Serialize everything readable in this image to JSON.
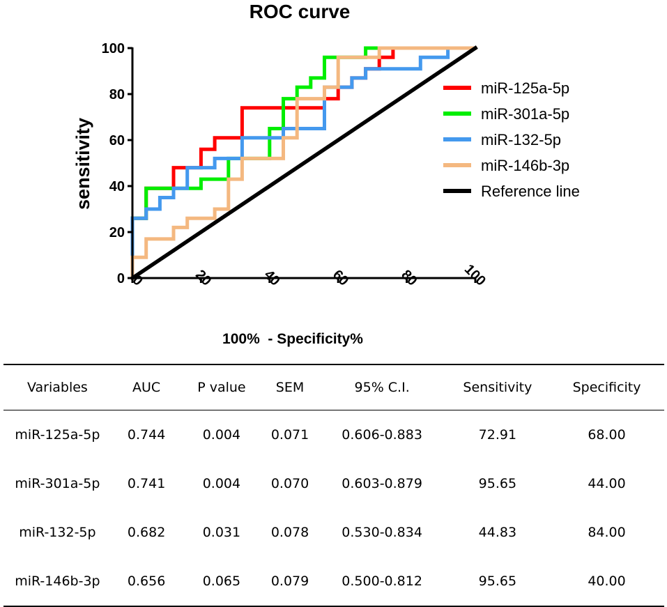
{
  "chart_data": {
    "type": "line",
    "title": "ROC curve",
    "xlabel": "100%  - Specificity%",
    "ylabel": "sensitivity",
    "xlim": [
      0,
      100
    ],
    "ylim": [
      0,
      100
    ],
    "xticks": [
      "0",
      "20",
      "40",
      "60",
      "80",
      "100"
    ],
    "yticks": [
      "0",
      "20",
      "40",
      "60",
      "80",
      "100"
    ],
    "legend_position": "right",
    "series": [
      {
        "name": "miR-125a-5p",
        "color": "#ff0000",
        "points": [
          [
            0,
            0
          ],
          [
            0,
            26
          ],
          [
            4,
            26
          ],
          [
            4,
            39
          ],
          [
            12,
            39
          ],
          [
            12,
            48
          ],
          [
            16,
            48
          ],
          [
            16,
            48
          ],
          [
            20,
            48
          ],
          [
            20,
            56
          ],
          [
            24,
            56
          ],
          [
            24,
            61
          ],
          [
            32,
            61
          ],
          [
            32,
            74
          ],
          [
            56,
            74
          ],
          [
            56,
            78
          ],
          [
            60,
            78
          ],
          [
            60,
            83
          ],
          [
            64,
            83
          ],
          [
            64,
            87
          ],
          [
            68,
            87
          ],
          [
            68,
            91
          ],
          [
            72,
            91
          ],
          [
            72,
            96
          ],
          [
            76,
            96
          ],
          [
            76,
            100
          ],
          [
            100,
            100
          ]
        ]
      },
      {
        "name": "miR-301a-5p",
        "color": "#00ee00",
        "points": [
          [
            0,
            0
          ],
          [
            0,
            26
          ],
          [
            4,
            26
          ],
          [
            4,
            39
          ],
          [
            20,
            39
          ],
          [
            20,
            43
          ],
          [
            28,
            43
          ],
          [
            28,
            52
          ],
          [
            40,
            52
          ],
          [
            40,
            65
          ],
          [
            44,
            65
          ],
          [
            44,
            78
          ],
          [
            48,
            78
          ],
          [
            48,
            83
          ],
          [
            52,
            83
          ],
          [
            52,
            87
          ],
          [
            56,
            87
          ],
          [
            56,
            96
          ],
          [
            68,
            96
          ],
          [
            68,
            100
          ],
          [
            100,
            100
          ]
        ]
      },
      {
        "name": "miR-132-5p",
        "color": "#4499ee",
        "points": [
          [
            0,
            0
          ],
          [
            0,
            26
          ],
          [
            4,
            26
          ],
          [
            4,
            30
          ],
          [
            8,
            30
          ],
          [
            8,
            35
          ],
          [
            12,
            35
          ],
          [
            12,
            39
          ],
          [
            16,
            39
          ],
          [
            16,
            48
          ],
          [
            24,
            48
          ],
          [
            24,
            52
          ],
          [
            32,
            52
          ],
          [
            32,
            61
          ],
          [
            44,
            61
          ],
          [
            44,
            65
          ],
          [
            56,
            65
          ],
          [
            56,
            83
          ],
          [
            64,
            83
          ],
          [
            64,
            87
          ],
          [
            68,
            87
          ],
          [
            68,
            91
          ],
          [
            84,
            91
          ],
          [
            84,
            96
          ],
          [
            92,
            96
          ],
          [
            92,
            100
          ],
          [
            100,
            100
          ]
        ]
      },
      {
        "name": "miR-146b-3p",
        "color": "#f4b880",
        "points": [
          [
            0,
            0
          ],
          [
            0,
            9
          ],
          [
            4,
            9
          ],
          [
            4,
            17
          ],
          [
            12,
            17
          ],
          [
            12,
            22
          ],
          [
            16,
            22
          ],
          [
            16,
            26
          ],
          [
            24,
            26
          ],
          [
            24,
            30
          ],
          [
            28,
            30
          ],
          [
            28,
            43
          ],
          [
            32,
            43
          ],
          [
            32,
            52
          ],
          [
            44,
            52
          ],
          [
            44,
            61
          ],
          [
            48,
            61
          ],
          [
            48,
            78
          ],
          [
            56,
            78
          ],
          [
            56,
            83
          ],
          [
            60,
            83
          ],
          [
            60,
            96
          ],
          [
            72,
            96
          ],
          [
            72,
            100
          ],
          [
            100,
            100
          ]
        ]
      },
      {
        "name": "Reference line",
        "color": "#000000",
        "points": [
          [
            0,
            0
          ],
          [
            100,
            100
          ]
        ]
      }
    ]
  },
  "table": {
    "headers": [
      "Variables",
      "AUC",
      "P value",
      "SEM",
      "95% C.I.",
      "Sensitivity",
      "Specificity"
    ],
    "rows": [
      [
        "miR-125a-5p",
        "0.744",
        "0.004",
        "0.071",
        "0.606-0.883",
        "72.91",
        "68.00"
      ],
      [
        "miR-301a-5p",
        "0.741",
        "0.004",
        "0.070",
        "0.603-0.879",
        "95.65",
        "44.00"
      ],
      [
        "miR-132-5p",
        "0.682",
        "0.031",
        "0.078",
        "0.530-0.834",
        "44.83",
        "84.00"
      ],
      [
        "miR-146b-3p",
        "0.656",
        "0.065",
        "0.079",
        "0.500-0.812",
        "95.65",
        "40.00"
      ]
    ]
  }
}
